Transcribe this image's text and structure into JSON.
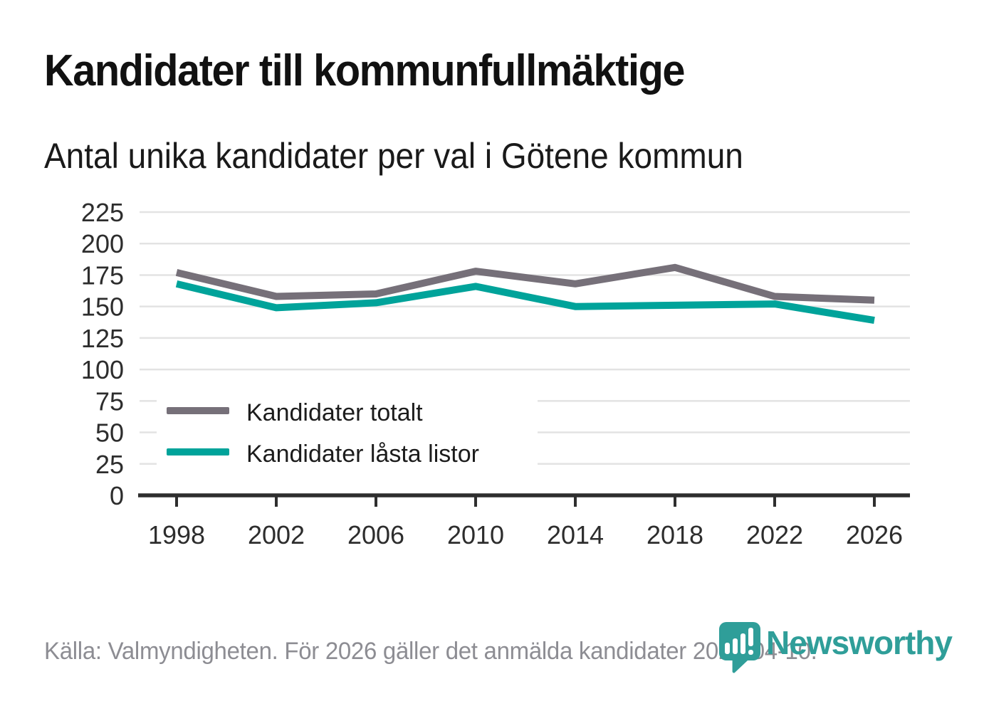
{
  "header": {
    "title": "Kandidater till kommunfullmäktige",
    "subtitle": "Antal unika kandidater per val i Götene kommun"
  },
  "chart_data": {
    "type": "line",
    "title": "Kandidater till kommunfullmäktige",
    "subtitle": "Antal unika kandidater per val i Götene kommun",
    "categories": [
      "1998",
      "2002",
      "2006",
      "2010",
      "2014",
      "2018",
      "2022",
      "2026"
    ],
    "series": [
      {
        "name": "Kandidater totalt",
        "color": "#767079",
        "values": [
          177,
          158,
          160,
          178,
          168,
          181,
          158,
          155
        ]
      },
      {
        "name": "Kandidater låsta listor",
        "color": "#00a39a",
        "values": [
          168,
          149,
          153,
          166,
          150,
          151,
          152,
          139
        ]
      }
    ],
    "xlabel": "",
    "ylabel": "",
    "ylim": [
      0,
      225
    ],
    "ytick_step": 25,
    "grid": "horizontal-only",
    "legend_position": "inside bottom-left",
    "axis_color": "#2e2e2e",
    "grid_color": "#e3e3e3",
    "label_color": "#2d2d2d",
    "legend_text_color": "#1c1c1c"
  },
  "footer": {
    "source": "Källa: Valmyndigheten. För 2026 gäller det anmälda kandidater 2026-04-10."
  },
  "logo": {
    "wordmark": "Newsworthy",
    "color": "#2f9e99"
  }
}
